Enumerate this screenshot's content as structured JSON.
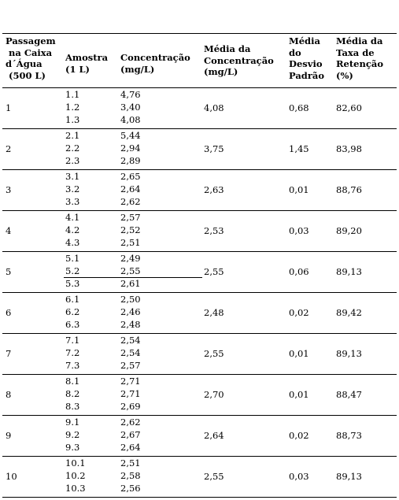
{
  "headers": {
    "passagem": "Passagem\n na Caixa\nd´Água\n (500 L)",
    "amostra": "Amostra\n(1 L)",
    "concentracao": "Concentração\n(mg/L)",
    "media_concentracao": "Média da\nConcentração\n(mg/L)",
    "media_desvio": "Média\ndo\nDesvio\nPadrão",
    "media_taxa": "Média da\nTaxa de\nRetenção\n(%)"
  },
  "rows": [
    {
      "passagem": "1",
      "amostras": [
        "1.1",
        "1.2",
        "1.3"
      ],
      "concentracoes": [
        "4,76",
        "3,40",
        "4,08"
      ],
      "media": "4,08",
      "desvio": "0,68",
      "taxa": "82,60"
    },
    {
      "passagem": "2",
      "amostras": [
        "2.1",
        "2.2",
        "2.3"
      ],
      "concentracoes": [
        "5,44",
        "2,94",
        "2,89"
      ],
      "media": "3,75",
      "desvio": "1,45",
      "taxa": "83,98"
    },
    {
      "passagem": "3",
      "amostras": [
        "3.1",
        "3.2",
        "3.3"
      ],
      "concentracoes": [
        "2,65",
        "2,64",
        "2,62"
      ],
      "media": "2,63",
      "desvio": "0,01",
      "taxa": "88,76"
    },
    {
      "passagem": "4",
      "amostras": [
        "4.1",
        "4.2",
        "4.3"
      ],
      "concentracoes": [
        "2,57",
        "2,52",
        "2,51"
      ],
      "media": "2,53",
      "desvio": "0,03",
      "taxa": "89,20"
    },
    {
      "passagem": "5",
      "amostras": [
        "5.1",
        "5.2",
        "5.3"
      ],
      "concentracoes": [
        "2,49",
        "2,55",
        "2,61"
      ],
      "media": "2,55",
      "desvio": "0,06",
      "taxa": "89,13"
    },
    {
      "passagem": "6",
      "amostras": [
        "6.1",
        "6.2",
        "6.3"
      ],
      "concentracoes": [
        "2,50",
        "2,46",
        "2,48"
      ],
      "media": "2,48",
      "desvio": "0,02",
      "taxa": "89,42"
    },
    {
      "passagem": "7",
      "amostras": [
        "7.1",
        "7.2",
        "7.3"
      ],
      "concentracoes": [
        "2,54",
        "2,54",
        "2,57"
      ],
      "media": "2,55",
      "desvio": "0,01",
      "taxa": "89,13"
    },
    {
      "passagem": "8",
      "amostras": [
        "8.1",
        "8.2",
        "8.3"
      ],
      "concentracoes": [
        "2,71",
        "2,71",
        "2,69"
      ],
      "media": "2,70",
      "desvio": "0,01",
      "taxa": "88,47"
    },
    {
      "passagem": "9",
      "amostras": [
        "9.1",
        "9.2",
        "9.3"
      ],
      "concentracoes": [
        "2,62",
        "2,67",
        "2,64"
      ],
      "media": "2,64",
      "desvio": "0,02",
      "taxa": "88,73"
    },
    {
      "passagem": "10",
      "amostras": [
        "10.1",
        "10.2",
        "10.3"
      ],
      "concentracoes": [
        "2,51",
        "2,58",
        "2,56"
      ],
      "media": "2,55",
      "desvio": "0,03",
      "taxa": "89,13"
    }
  ]
}
